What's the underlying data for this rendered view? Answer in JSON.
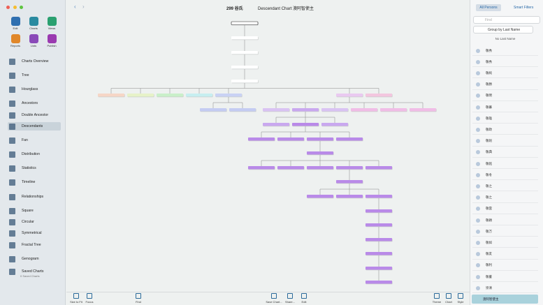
{
  "app": {
    "window": {
      "count": "299 谷氏",
      "title": "Descendant Chart 澳阿智使主"
    },
    "sidebar": {
      "tools": [
        "Edit",
        "Charts",
        "Views",
        "Reports",
        "Lists",
        "Publish"
      ],
      "items": [
        "Charts Overview",
        "Tree",
        "Hourglass",
        "Ancestors",
        "Double Ancestor",
        "Descendants",
        "Fan",
        "Distribution",
        "Statistics",
        "Timeline",
        "Relationships",
        "Square",
        "Circular",
        "Symmetrical",
        "Fractal Tree",
        "Genogram",
        "Saved Charts"
      ],
      "saved_subtitle": "0 Saved Charts"
    },
    "bottom_tools": [
      "Size to Fit",
      "Focus",
      "Find",
      "Save Chart...",
      "Share...",
      "Edit",
      "Theme",
      "Chart",
      "Style"
    ],
    "persons_panel": {
      "tabs": [
        "All Persons",
        "Smart Filters"
      ],
      "search": "Find",
      "group": "Group by Last Name",
      "section": "No Last Name",
      "persons": [
        "敬秀",
        "敬秀",
        "敬純",
        "敬勝",
        "敬明",
        "敬蕃",
        "敬雄",
        "敬政",
        "敬則",
        "敬典",
        "敬銘",
        "敬冬",
        "敬之",
        "敬之",
        "敬雲",
        "敬穎",
        "敬万",
        "敬如",
        "敬友",
        "敬利",
        "敬董",
        "崇清"
      ],
      "selected": "澳阿智使主"
    }
  }
}
